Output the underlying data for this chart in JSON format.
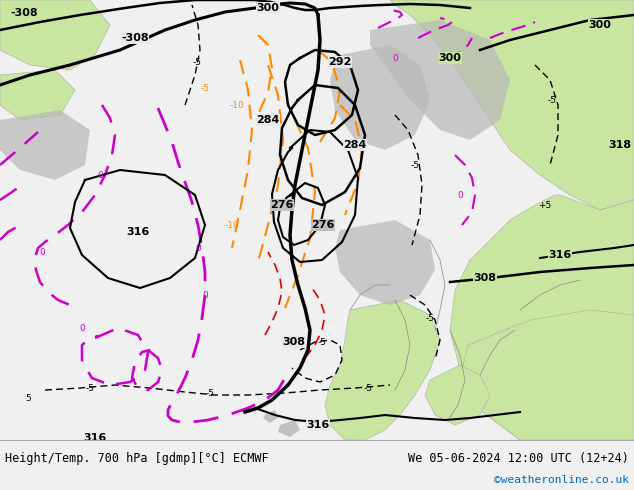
{
  "title_left": "Height/Temp. 700 hPa [gdmp][°C] ECMWF",
  "title_right": "We 05-06-2024 12:00 UTC (12+24)",
  "credit": "©weatheronline.co.uk",
  "land_green": "#c8e6a0",
  "land_green_dark": "#b0cc80",
  "sea_color": "#e0e0e8",
  "bg_gray": "#d8d8d8",
  "fig_width": 6.34,
  "fig_height": 4.9
}
